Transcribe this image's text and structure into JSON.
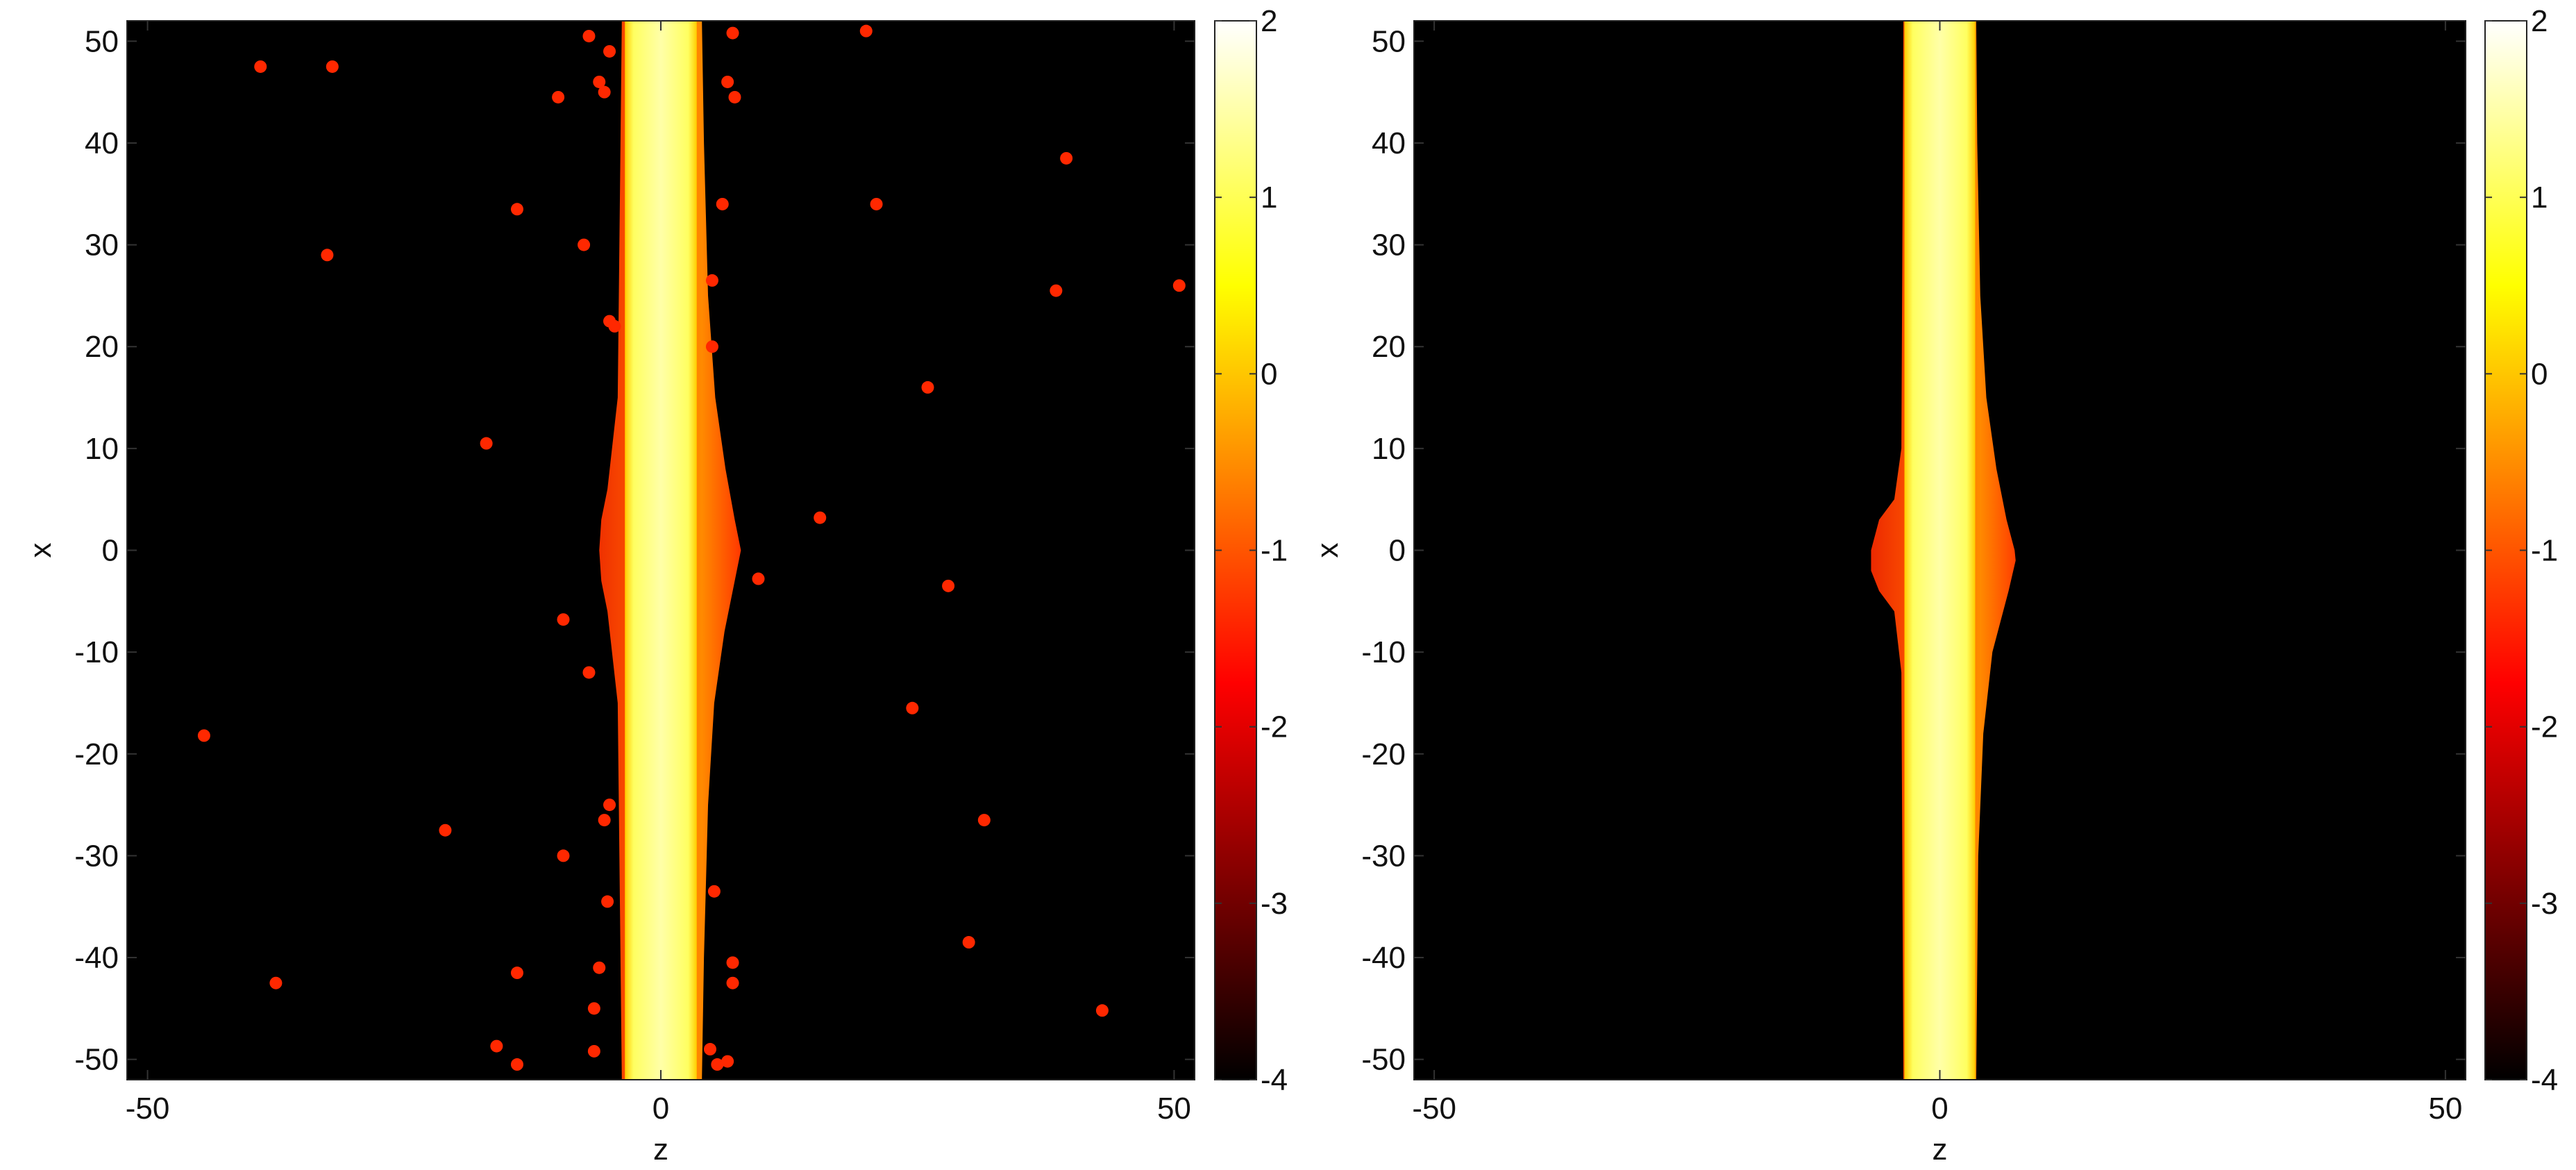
{
  "chart_data": [
    {
      "type": "heatmap",
      "title": "",
      "xlabel": "z",
      "ylabel": "x",
      "xlim": [
        -52,
        52
      ],
      "ylim": [
        -52,
        52
      ],
      "x_ticks": [
        -50,
        0,
        50
      ],
      "y_ticks": [
        50,
        40,
        30,
        20,
        10,
        0,
        -10,
        -20,
        -30,
        -40,
        -50
      ],
      "colorbar": {
        "min": -4,
        "max": 2,
        "ticks": [
          2,
          1,
          0,
          -1,
          -2,
          -3,
          -4
        ],
        "colormap": "hot"
      },
      "background_value": -4,
      "band": {
        "z_min": -3.5,
        "z_max": 3.5,
        "value": 1.9
      },
      "bulge": {
        "center_x": 0,
        "right_profile": [
          [
            52,
            4.0
          ],
          [
            40,
            4.2
          ],
          [
            25,
            4.6
          ],
          [
            15,
            5.3
          ],
          [
            8,
            6.3
          ],
          [
            3,
            7.2
          ],
          [
            0,
            7.8
          ],
          [
            -3,
            7.2
          ],
          [
            -8,
            6.2
          ],
          [
            -15,
            5.2
          ],
          [
            -25,
            4.6
          ],
          [
            -40,
            4.2
          ],
          [
            -52,
            4.0
          ]
        ],
        "left_profile": [
          [
            52,
            -3.8
          ],
          [
            15,
            -4.2
          ],
          [
            6,
            -5.2
          ],
          [
            3,
            -5.8
          ],
          [
            0,
            -6.0
          ],
          [
            -3,
            -5.8
          ],
          [
            -6,
            -5.2
          ],
          [
            -15,
            -4.2
          ],
          [
            -52,
            -3.8
          ]
        ]
      },
      "scatter_value": -1.4,
      "scatter": [
        [
          -39,
          47.5
        ],
        [
          -32,
          47.5
        ],
        [
          -7,
          50.5
        ],
        [
          -5,
          49
        ],
        [
          -6,
          46
        ],
        [
          -5.5,
          45
        ],
        [
          -10,
          44.5
        ],
        [
          7,
          50.8
        ],
        [
          20,
          51
        ],
        [
          6.5,
          46
        ],
        [
          7.2,
          44.5
        ],
        [
          39.5,
          38.5
        ],
        [
          -14,
          33.5
        ],
        [
          6,
          34
        ],
        [
          21,
          34
        ],
        [
          -7.5,
          30
        ],
        [
          -32.5,
          29
        ],
        [
          5,
          26.5
        ],
        [
          38.5,
          25.5
        ],
        [
          50.5,
          26
        ],
        [
          -5,
          22.5
        ],
        [
          -4.5,
          22
        ],
        [
          5,
          20
        ],
        [
          26,
          16
        ],
        [
          -17,
          10.5
        ],
        [
          15.5,
          3.2
        ],
        [
          9.5,
          -2.8
        ],
        [
          28,
          -3.5
        ],
        [
          -9.5,
          -6.8
        ],
        [
          -7,
          -12
        ],
        [
          24.5,
          -15.5
        ],
        [
          -44.5,
          -18.2
        ],
        [
          -5,
          -25
        ],
        [
          -5.5,
          -26.5
        ],
        [
          31.5,
          -26.5
        ],
        [
          -21,
          -27.5
        ],
        [
          -9.5,
          -30
        ],
        [
          -5.2,
          -34.5
        ],
        [
          5.2,
          -33.5
        ],
        [
          30,
          -38.5
        ],
        [
          -6,
          -41
        ],
        [
          7,
          -40.5
        ],
        [
          -14,
          -41.5
        ],
        [
          -37.5,
          -42.5
        ],
        [
          7,
          -42.5
        ],
        [
          -6.5,
          -45
        ],
        [
          43,
          -45.2
        ],
        [
          -16,
          -48.7
        ],
        [
          -6.5,
          -49.2
        ],
        [
          4.8,
          -49
        ],
        [
          -14,
          -50.5
        ],
        [
          5.5,
          -50.5
        ],
        [
          6.5,
          -50.2
        ]
      ]
    },
    {
      "type": "heatmap",
      "title": "",
      "xlabel": "z",
      "ylabel": "x",
      "xlim": [
        -52,
        52
      ],
      "ylim": [
        -52,
        52
      ],
      "x_ticks": [
        -50,
        0,
        50
      ],
      "y_ticks": [
        50,
        40,
        30,
        20,
        10,
        0,
        -10,
        -20,
        -30,
        -40,
        -50
      ],
      "colorbar": {
        "min": -4,
        "max": 2,
        "ticks": [
          2,
          1,
          0,
          -1,
          -2,
          -3,
          -4
        ],
        "colormap": "hot"
      },
      "background_value": -4,
      "band": {
        "z_min": -3.5,
        "z_max": 3.5,
        "value": 1.9
      },
      "bulge": {
        "center_x": -1,
        "right_profile": [
          [
            52,
            3.6
          ],
          [
            40,
            3.7
          ],
          [
            25,
            4.0
          ],
          [
            15,
            4.6
          ],
          [
            8,
            5.6
          ],
          [
            3,
            6.6
          ],
          [
            0,
            7.4
          ],
          [
            -1,
            7.5
          ],
          [
            -4,
            6.8
          ],
          [
            -10,
            5.2
          ],
          [
            -18,
            4.3
          ],
          [
            -30,
            3.8
          ],
          [
            -52,
            3.6
          ]
        ],
        "left_profile": [
          [
            52,
            -3.6
          ],
          [
            10,
            -3.8
          ],
          [
            5,
            -4.5
          ],
          [
            3,
            -6.0
          ],
          [
            0,
            -6.8
          ],
          [
            -2,
            -6.8
          ],
          [
            -4,
            -6.0
          ],
          [
            -6,
            -4.5
          ],
          [
            -12,
            -3.8
          ],
          [
            -52,
            -3.6
          ]
        ]
      },
      "scatter_value": -1.4,
      "scatter": []
    }
  ]
}
